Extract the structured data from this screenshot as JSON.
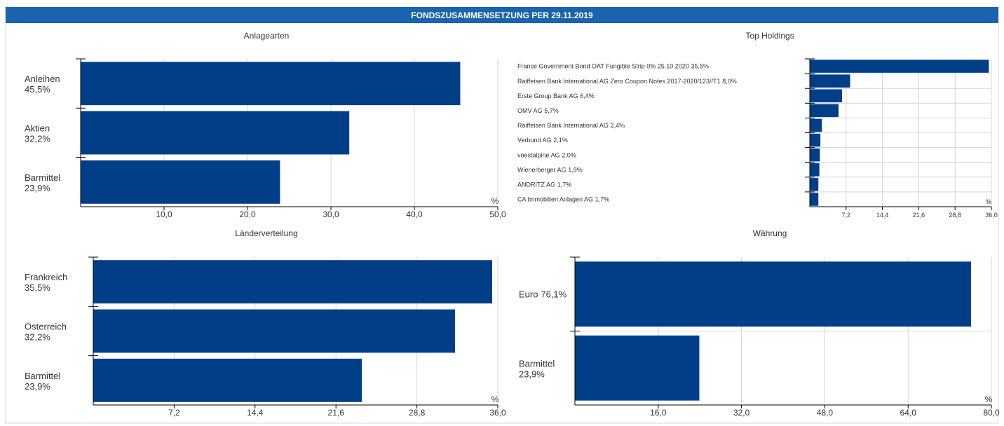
{
  "header": {
    "title": "FONDSZUSAMMENSETZUNG PER 29.11.2019"
  },
  "chart_data": [
    {
      "type": "hbar",
      "title": "Anlagearten",
      "categories": [
        "Anleihen",
        "Aktien",
        "Barmittel"
      ],
      "values": [
        45.5,
        32.2,
        23.9
      ],
      "value_labels": [
        "45,5%",
        "32,2%",
        "23,9%"
      ],
      "color": "#003f87",
      "xlim": [
        0,
        50
      ],
      "xticks": [
        {
          "value": 10,
          "label": "10,0"
        },
        {
          "value": 20,
          "label": "20,0"
        },
        {
          "value": 30,
          "label": "30,0"
        },
        {
          "value": 40,
          "label": "40,0"
        },
        {
          "value": 50,
          "label": "50,0"
        }
      ],
      "unit": "%",
      "grid": true
    },
    {
      "type": "hbar",
      "title": "Top Holdings",
      "categories": [
        "France Government Bond OAT Fungible Strip 0% 25.10.2020",
        "Raiffeisen Bank International AG Zero Coupon Notes 2017-2020/123//T1",
        "Erste Group Bank AG",
        "OMV AG",
        "Raiffeisen Bank International AG",
        "Verbund AG",
        "voestalpine AG",
        "Wienerberger AG",
        "ANDRITZ AG",
        "CA Immobilien Anlagen AG"
      ],
      "values": [
        35.5,
        8.0,
        6.4,
        5.7,
        2.4,
        2.1,
        2.0,
        1.9,
        1.7,
        1.7
      ],
      "value_labels": [
        "35,5%",
        "8,0%",
        "6,4%",
        "5,7%",
        "2,4%",
        "2,1%",
        "2,0%",
        "1,9%",
        "1,7%",
        "1,7%"
      ],
      "color": "#003f87",
      "xlim": [
        0,
        36
      ],
      "xticks": [
        {
          "value": 7.2,
          "label": "7,2"
        },
        {
          "value": 14.4,
          "label": "14,4"
        },
        {
          "value": 21.6,
          "label": "21,6"
        },
        {
          "value": 28.8,
          "label": "28,8"
        },
        {
          "value": 36,
          "label": "36,0"
        }
      ],
      "unit": "%",
      "grid": true
    },
    {
      "type": "hbar",
      "title": "Länderverteilung",
      "categories": [
        "Frankreich",
        "Österreich",
        "Barmittel"
      ],
      "values": [
        35.5,
        32.2,
        23.9
      ],
      "value_labels": [
        "35,5%",
        "32,2%",
        "23,9%"
      ],
      "color": "#003f87",
      "xlim": [
        0,
        36
      ],
      "xticks": [
        {
          "value": 7.2,
          "label": "7,2"
        },
        {
          "value": 14.4,
          "label": "14,4"
        },
        {
          "value": 21.6,
          "label": "21,6"
        },
        {
          "value": 28.8,
          "label": "28,8"
        },
        {
          "value": 36,
          "label": "36,0"
        }
      ],
      "unit": "%",
      "grid": true
    },
    {
      "type": "hbar",
      "title": "Währung",
      "categories": [
        "Euro",
        "Barmittel"
      ],
      "values": [
        76.1,
        23.9
      ],
      "value_labels": [
        "76,1%",
        "23,9%"
      ],
      "color": "#003f87",
      "xlim": [
        0,
        80
      ],
      "xticks": [
        {
          "value": 16,
          "label": "16,0"
        },
        {
          "value": 32,
          "label": "32,0"
        },
        {
          "value": 48,
          "label": "48,0"
        },
        {
          "value": 64,
          "label": "64,0"
        },
        {
          "value": 80,
          "label": "80,0"
        }
      ],
      "unit": "%",
      "grid": true
    }
  ]
}
